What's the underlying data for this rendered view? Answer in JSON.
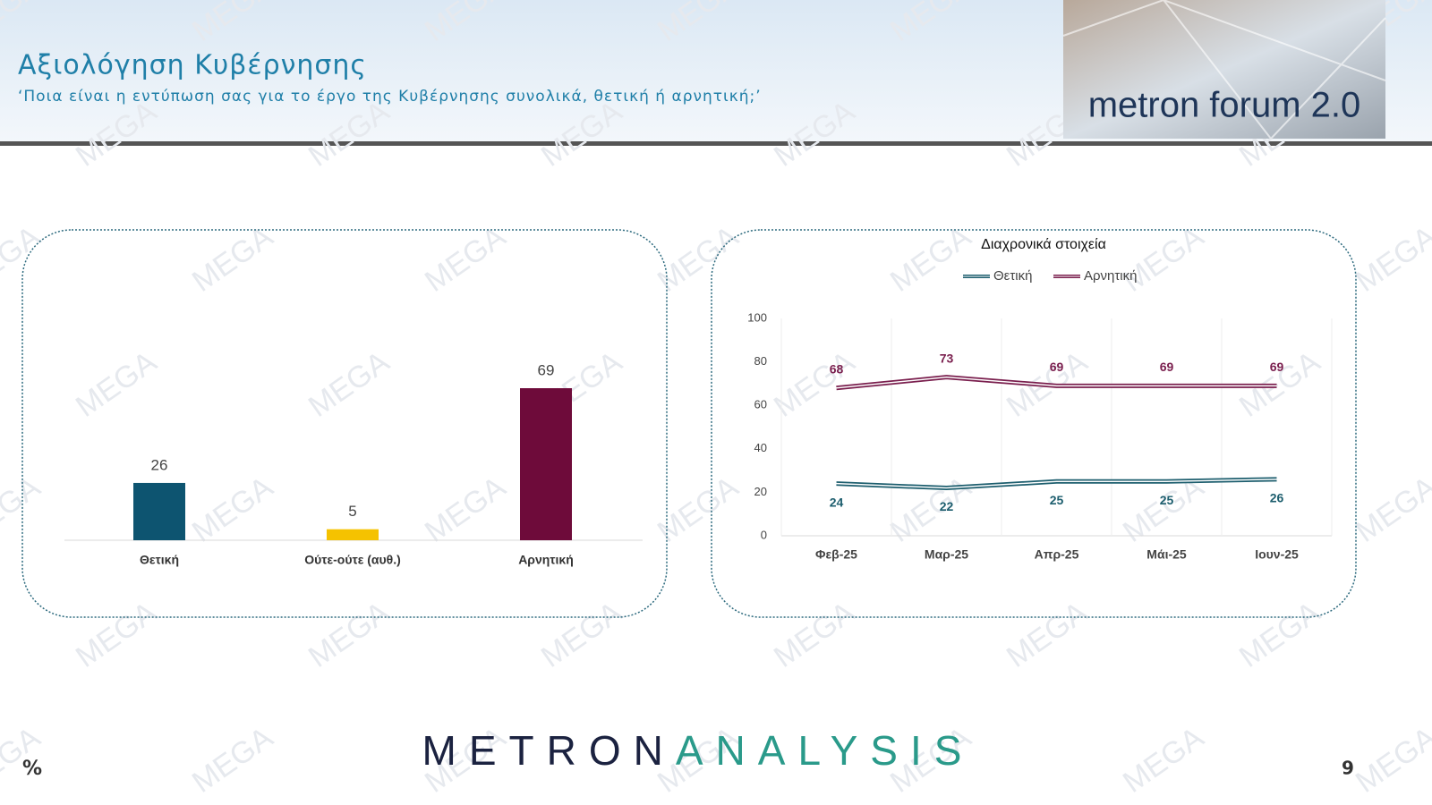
{
  "header": {
    "title": "Αξιολόγηση Κυβέρνησης",
    "subtitle": "‘Ποια είναι η εντύπωση σας για το έργο της Κυβέρνησης συνολικά, θετική ή αρνητική;’",
    "logo": "metron forum 2.0"
  },
  "watermark": "MEGA",
  "footer": {
    "brand": [
      "METRON",
      "ANALYSIS"
    ],
    "unit": "%",
    "page": "9"
  },
  "chart_data": [
    {
      "type": "bar",
      "categories": [
        "Θετική",
        "Ούτε-ούτε (αυθ.)",
        "Αρνητική"
      ],
      "values": [
        26,
        5,
        69
      ],
      "colors": [
        "#0d5470",
        "#f5c200",
        "#6e0b3a"
      ]
    },
    {
      "type": "line",
      "title": "Διαχρονικά στοιχεία",
      "categories": [
        "Φεβ-25",
        "Μαρ-25",
        "Απρ-25",
        "Μάι-25",
        "Ιουν-25"
      ],
      "series": [
        {
          "name": "Θετική",
          "color": "#1d5e6e",
          "values": [
            24,
            22,
            25,
            25,
            26
          ]
        },
        {
          "name": "Αρνητική",
          "color": "#7a1f4e",
          "values": [
            68,
            73,
            69,
            69,
            69
          ]
        }
      ],
      "ylim": [
        0,
        100
      ],
      "yticks": [
        0,
        20,
        40,
        60,
        80,
        100
      ],
      "grid": true,
      "legend": "top"
    }
  ]
}
